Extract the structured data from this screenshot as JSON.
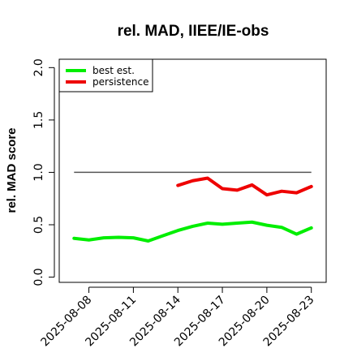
{
  "chart_data": {
    "type": "line",
    "title": "rel. MAD, IIEE/IE-obs",
    "xlabel": "",
    "ylabel": "rel. MAD score",
    "x_dates": [
      "2025-08-07",
      "2025-08-08",
      "2025-08-09",
      "2025-08-10",
      "2025-08-11",
      "2025-08-12",
      "2025-08-13",
      "2025-08-14",
      "2025-08-15",
      "2025-08-16",
      "2025-08-17",
      "2025-08-18",
      "2025-08-19",
      "2025-08-20",
      "2025-08-21",
      "2025-08-22",
      "2025-08-23"
    ],
    "x_tick_labels": [
      "2025-08-08",
      "2025-08-11",
      "2025-08-14",
      "2025-08-17",
      "2025-08-20",
      "2025-08-23"
    ],
    "xlim": [
      "2025-08-06",
      "2025-08-24"
    ],
    "ylim": [
      -0.05,
      2.08
    ],
    "y_ticks": [
      0.0,
      0.5,
      1.0,
      1.5,
      2.0
    ],
    "y_tick_labels": [
      "0.0",
      "0.5",
      "1.0",
      "1.5",
      "2.0"
    ],
    "reference_line": {
      "y": 1.0,
      "x_from": "2025-08-07",
      "x_to": "2025-08-23",
      "color": "#555555"
    },
    "series": [
      {
        "name": "best est.",
        "color": "#00ee00",
        "values": [
          0.37,
          0.355,
          0.375,
          0.38,
          0.375,
          0.345,
          0.395,
          0.445,
          0.485,
          0.515,
          0.505,
          0.515,
          0.525,
          0.495,
          0.475,
          0.41,
          0.47
        ]
      },
      {
        "name": "persistence",
        "color": "#ee0000",
        "values": [
          null,
          null,
          null,
          null,
          null,
          null,
          null,
          0.875,
          0.92,
          0.945,
          0.845,
          0.83,
          0.88,
          0.785,
          0.82,
          0.805,
          0.865
        ]
      }
    ],
    "legend_position": "top-left",
    "grid": false
  }
}
